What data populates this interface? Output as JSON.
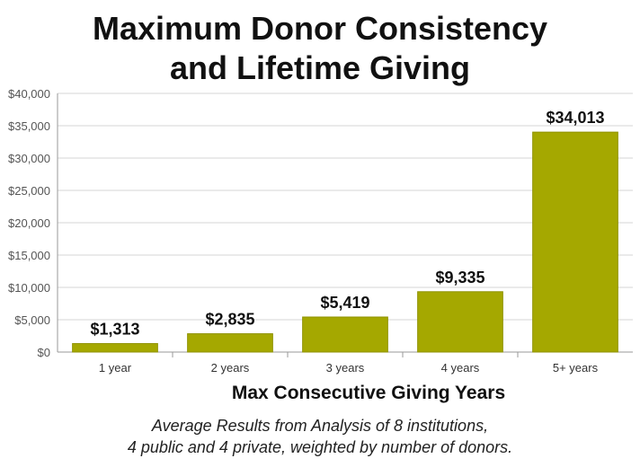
{
  "title_lines": [
    "Maximum Donor Consistency",
    "and Lifetime Giving"
  ],
  "footnote_lines": [
    "Average Results from Analysis of  8 institutions,",
    "4 public and 4 private, weighted by number of donors."
  ],
  "chart_data": {
    "type": "bar",
    "title": "Maximum Donor Consistency and Lifetime Giving",
    "xlabel": "Max Consecutive Giving Years",
    "ylabel": "",
    "categories": [
      "1 year",
      "2 years",
      "3 years",
      "4 years",
      "5+ years"
    ],
    "values": [
      1313,
      2835,
      5419,
      9335,
      34013
    ],
    "data_labels": [
      "$1,313",
      "$2,835",
      "$5,419",
      "$9,335",
      "$34,013"
    ],
    "ylim": [
      0,
      40000
    ],
    "yticks": [
      0,
      5000,
      10000,
      15000,
      20000,
      25000,
      30000,
      35000,
      40000
    ],
    "ytick_labels": [
      "$0",
      "$5,000",
      "$10,000",
      "$15,000",
      "$20,000",
      "$25,000",
      "$30,000",
      "$35,000",
      "$40,000"
    ],
    "grid": true,
    "bar_color": "#a5a800",
    "bar_border_color": "#8f9200"
  }
}
